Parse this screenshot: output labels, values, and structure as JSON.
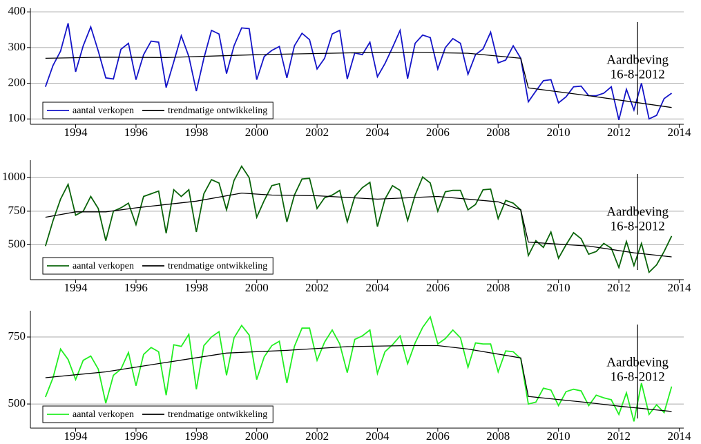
{
  "chart_data": [
    {
      "type": "line",
      "x": [
        1993,
        1993.25,
        1993.5,
        1993.75,
        1994,
        1994.25,
        1994.5,
        1994.75,
        1995,
        1995.25,
        1995.5,
        1995.75,
        1996,
        1996.25,
        1996.5,
        1996.75,
        1997,
        1997.25,
        1997.5,
        1997.75,
        1998,
        1998.25,
        1998.5,
        1998.75,
        1999,
        1999.25,
        1999.5,
        1999.75,
        2000,
        2000.25,
        2000.5,
        2000.75,
        2001,
        2001.25,
        2001.5,
        2001.75,
        2002,
        2002.25,
        2002.5,
        2002.75,
        2003,
        2003.25,
        2003.5,
        2003.75,
        2004,
        2004.25,
        2004.5,
        2004.75,
        2005,
        2005.25,
        2005.5,
        2005.75,
        2006,
        2006.25,
        2006.5,
        2006.75,
        2007,
        2007.25,
        2007.5,
        2007.75,
        2008,
        2008.25,
        2008.5,
        2008.75,
        2009,
        2009.25,
        2009.5,
        2009.75,
        2010,
        2010.25,
        2010.5,
        2010.75,
        2011,
        2011.25,
        2011.5,
        2011.75,
        2012,
        2012.25,
        2012.5,
        2012.75,
        2013,
        2013.25,
        2013.5,
        2013.75
      ],
      "series": [
        {
          "name": "aantal verkopen",
          "color": "#1414c8",
          "values": [
            190,
            250,
            290,
            368,
            232,
            305,
            358,
            290,
            215,
            212,
            295,
            312,
            210,
            280,
            318,
            315,
            188,
            260,
            333,
            275,
            178,
            270,
            348,
            338,
            227,
            305,
            355,
            353,
            210,
            275,
            292,
            303,
            215,
            305,
            340,
            322,
            240,
            270,
            338,
            348,
            212,
            285,
            280,
            315,
            218,
            255,
            300,
            348,
            213,
            312,
            335,
            328,
            240,
            300,
            325,
            312,
            225,
            280,
            296,
            343,
            257,
            265,
            305,
            270,
            148,
            178,
            207,
            210,
            145,
            162,
            190,
            192,
            165,
            165,
            172,
            190,
            97,
            183,
            125,
            200,
            100,
            110,
            157,
            172
          ]
        },
        {
          "name": "trendmatige ontwikkeling",
          "color": "#000000",
          "x": [
            1993,
            1995,
            1997,
            2000,
            2003,
            2005,
            2007,
            2008.75,
            2009,
            2011,
            2013.75
          ],
          "values": [
            270,
            273,
            272,
            280,
            285,
            287,
            284,
            270,
            187,
            165,
            132
          ]
        }
      ],
      "xlim": [
        1992.5,
        2014.15
      ],
      "xticks": [
        1994,
        1996,
        1998,
        2000,
        2002,
        2004,
        2006,
        2008,
        2010,
        2012,
        2014
      ],
      "ylim": [
        85,
        410
      ],
      "yticks": [
        100,
        200,
        300,
        400
      ],
      "grid": true,
      "legend": "lower left",
      "annotation": {
        "x": 2012.62,
        "text": [
          "Aardbeving",
          "16-8-2012"
        ]
      }
    },
    {
      "type": "line",
      "x": [
        1993,
        1993.25,
        1993.5,
        1993.75,
        1994,
        1994.25,
        1994.5,
        1994.75,
        1995,
        1995.25,
        1995.5,
        1995.75,
        1996,
        1996.25,
        1996.5,
        1996.75,
        1997,
        1997.25,
        1997.5,
        1997.75,
        1998,
        1998.25,
        1998.5,
        1998.75,
        1999,
        1999.25,
        1999.5,
        1999.75,
        2000,
        2000.25,
        2000.5,
        2000.75,
        2001,
        2001.25,
        2001.5,
        2001.75,
        2002,
        2002.25,
        2002.5,
        2002.75,
        2003,
        2003.25,
        2003.5,
        2003.75,
        2004,
        2004.25,
        2004.5,
        2004.75,
        2005,
        2005.25,
        2005.5,
        2005.75,
        2006,
        2006.25,
        2006.5,
        2006.75,
        2007,
        2007.25,
        2007.5,
        2007.75,
        2008,
        2008.25,
        2008.5,
        2008.75,
        2009,
        2009.25,
        2009.5,
        2009.75,
        2010,
        2010.25,
        2010.5,
        2010.75,
        2011,
        2011.25,
        2011.5,
        2011.75,
        2012,
        2012.25,
        2012.5,
        2012.75,
        2013,
        2013.25,
        2013.5,
        2013.75
      ],
      "series": [
        {
          "name": "aantal verkopen",
          "color": "#0a640a",
          "values": [
            490,
            680,
            840,
            950,
            720,
            750,
            860,
            770,
            530,
            750,
            775,
            810,
            650,
            860,
            880,
            900,
            585,
            910,
            860,
            910,
            595,
            880,
            985,
            960,
            760,
            980,
            1085,
            1000,
            705,
            830,
            940,
            955,
            670,
            870,
            990,
            995,
            770,
            850,
            870,
            905,
            670,
            860,
            925,
            965,
            635,
            840,
            940,
            905,
            680,
            870,
            1005,
            960,
            750,
            895,
            905,
            905,
            760,
            800,
            910,
            915,
            695,
            830,
            810,
            760,
            420,
            530,
            480,
            595,
            400,
            500,
            590,
            545,
            430,
            450,
            510,
            475,
            330,
            525,
            345,
            510,
            295,
            350,
            450,
            565
          ]
        },
        {
          "name": "trendmatige ontwikkeling",
          "color": "#000000",
          "x": [
            1993,
            1994,
            1995,
            1996,
            1998,
            1999.5,
            2000.5,
            2002,
            2004,
            2006,
            2008,
            2008.75,
            2009,
            2011,
            2012.5,
            2013.75
          ],
          "values": [
            705,
            745,
            745,
            775,
            825,
            885,
            870,
            865,
            840,
            860,
            820,
            760,
            520,
            490,
            440,
            410
          ]
        }
      ],
      "xlim": [
        1992.5,
        2014.15
      ],
      "xticks": [
        1994,
        1996,
        1998,
        2000,
        2002,
        2004,
        2006,
        2008,
        2010,
        2012,
        2014
      ],
      "ylim": [
        240,
        1130
      ],
      "yticks": [
        500,
        750,
        1000
      ],
      "grid": true,
      "legend": "lower left",
      "annotation": {
        "x": 2012.62,
        "text": [
          "Aardbeving",
          "16-8-2012"
        ]
      }
    },
    {
      "type": "line",
      "x": [
        1993,
        1993.25,
        1993.5,
        1993.75,
        1994,
        1994.25,
        1994.5,
        1994.75,
        1995,
        1995.25,
        1995.5,
        1995.75,
        1996,
        1996.25,
        1996.5,
        1996.75,
        1997,
        1997.25,
        1997.5,
        1997.75,
        1998,
        1998.25,
        1998.5,
        1998.75,
        1999,
        1999.25,
        1999.5,
        1999.75,
        2000,
        2000.25,
        2000.5,
        2000.75,
        2001,
        2001.25,
        2001.5,
        2001.75,
        2002,
        2002.25,
        2002.5,
        2002.75,
        2003,
        2003.25,
        2003.5,
        2003.75,
        2004,
        2004.25,
        2004.5,
        2004.75,
        2005,
        2005.25,
        2005.5,
        2005.75,
        2006,
        2006.25,
        2006.5,
        2006.75,
        2007,
        2007.25,
        2007.5,
        2007.75,
        2008,
        2008.25,
        2008.5,
        2008.75,
        2009,
        2009.25,
        2009.5,
        2009.75,
        2010,
        2010.25,
        2010.5,
        2010.75,
        2011,
        2011.25,
        2011.5,
        2011.75,
        2012,
        2012.25,
        2012.5,
        2012.75,
        2013,
        2013.25,
        2013.5,
        2013.75
      ],
      "series": [
        {
          "name": "aantal verkopen",
          "color": "#22ee22",
          "values": [
            526,
            598,
            705,
            666,
            591,
            663,
            679,
            630,
            503,
            607,
            630,
            692,
            568,
            685,
            711,
            695,
            533,
            721,
            715,
            760,
            555,
            718,
            750,
            770,
            607,
            747,
            793,
            757,
            591,
            676,
            718,
            734,
            578,
            715,
            783,
            783,
            663,
            731,
            776,
            724,
            617,
            741,
            754,
            776,
            614,
            695,
            721,
            754,
            650,
            728,
            786,
            825,
            724,
            744,
            776,
            747,
            637,
            728,
            724,
            724,
            620,
            698,
            695,
            669,
            500,
            507,
            559,
            552,
            494,
            546,
            555,
            549,
            494,
            533,
            523,
            516,
            461,
            542,
            435,
            578,
            461,
            497,
            468,
            565
          ]
        },
        {
          "name": "trendmatige ontwikkeling",
          "color": "#000000",
          "x": [
            1993,
            1995,
            1997,
            1999,
            2001,
            2003,
            2005,
            2006,
            2007,
            2008.75,
            2009,
            2011,
            2012,
            2013.75
          ],
          "values": [
            598,
            620,
            655,
            690,
            700,
            714,
            718,
            718,
            705,
            672,
            528,
            505,
            492,
            472
          ]
        }
      ],
      "xlim": [
        1992.5,
        2014.15
      ],
      "xticks": [
        1994,
        1996,
        1998,
        2000,
        2002,
        2004,
        2006,
        2008,
        2010,
        2012,
        2014
      ],
      "ylim": [
        410,
        848
      ],
      "yticks": [
        500,
        750
      ],
      "grid": true,
      "legend": "lower left",
      "annotation": {
        "x": 2012.62,
        "text": [
          "Aardbeving",
          "16-8-2012"
        ]
      }
    }
  ]
}
